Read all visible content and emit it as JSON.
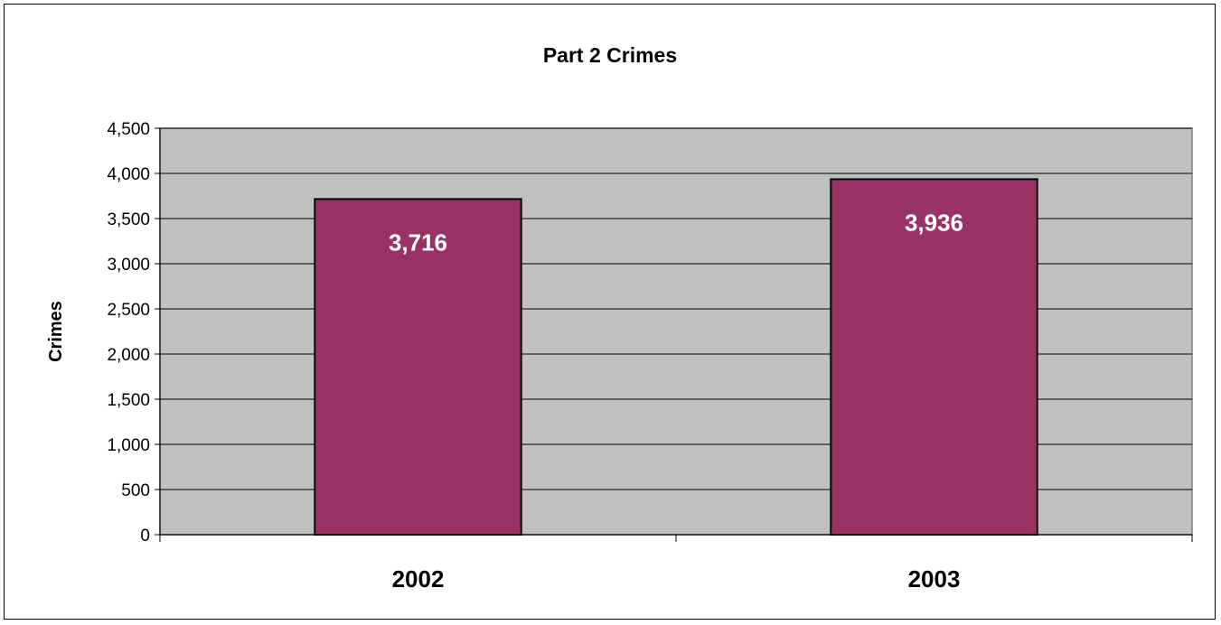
{
  "chart_data": {
    "type": "bar",
    "title": "Part 2 Crimes",
    "xlabel": "",
    "ylabel": "Crimes",
    "categories": [
      "2002",
      "2003"
    ],
    "values": [
      3716,
      3936
    ],
    "data_labels": [
      "3,716",
      "3,936"
    ],
    "ylim": [
      0,
      4500
    ],
    "y_ticks": [
      0,
      500,
      1000,
      1500,
      2000,
      2500,
      3000,
      3500,
      4000,
      4500
    ],
    "y_tick_labels": [
      "0",
      "500",
      "1,000",
      "1,500",
      "2,000",
      "2,500",
      "3,000",
      "3,500",
      "4,000",
      "4,500"
    ],
    "grid": true,
    "legend": "none",
    "colors": {
      "bar": "#993366",
      "plot_background": "#C0C0C0",
      "data_label": "#FFFFFF"
    }
  }
}
